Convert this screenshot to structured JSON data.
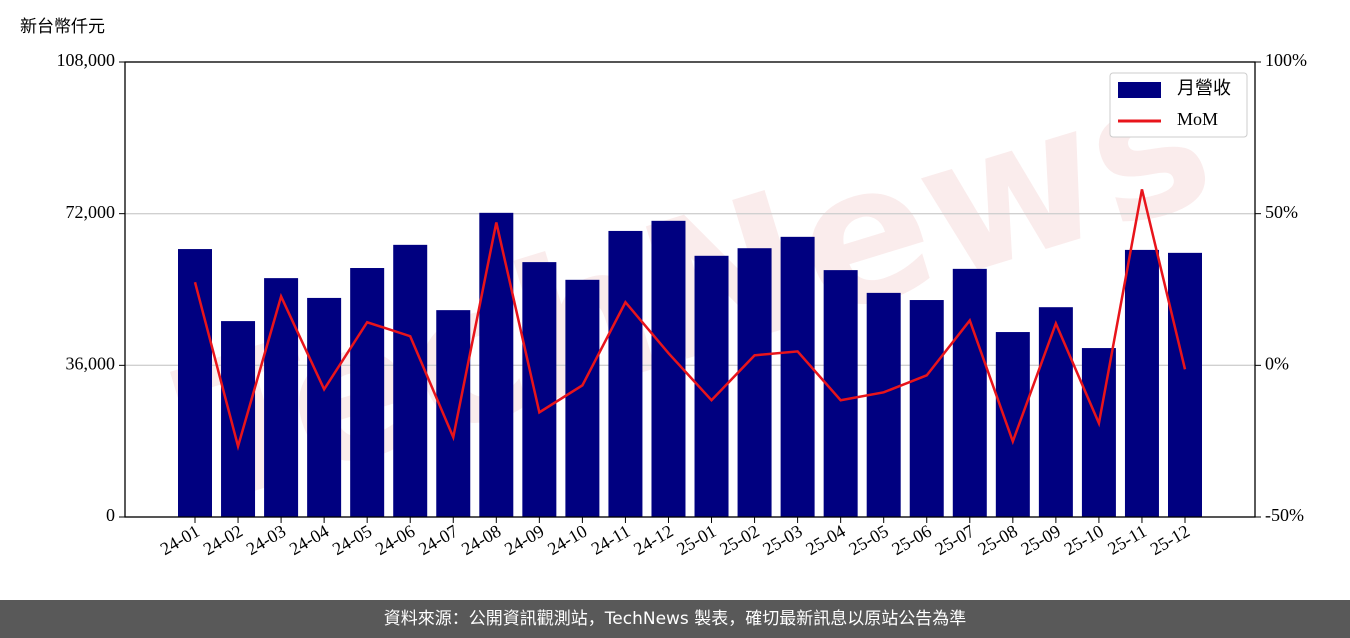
{
  "chart_data": {
    "type": "bar_line",
    "y_axis_label": "新台幣仟元",
    "watermark": "TechNews",
    "footer": "資料來源：公開資訊觀測站，TechNews 製表，確切最新訊息以原站公告為準",
    "categories": [
      "24-01",
      "24-02",
      "24-03",
      "24-04",
      "24-05",
      "24-06",
      "24-07",
      "24-08",
      "24-09",
      "24-10",
      "24-11",
      "24-12",
      "25-01",
      "25-02",
      "25-03",
      "25-04",
      "25-05",
      "25-06",
      "25-07",
      "25-08",
      "25-09",
      "25-10",
      "25-11",
      "25-12"
    ],
    "series": [
      {
        "name": "月營收",
        "type": "bar",
        "color": "#000080",
        "values": [
          63600,
          46500,
          56700,
          52000,
          59100,
          64600,
          49100,
          72200,
          60500,
          56300,
          67900,
          70300,
          62000,
          63800,
          66500,
          58600,
          53200,
          51500,
          58900,
          43900,
          49800,
          40100,
          63400,
          62700
        ]
      },
      {
        "name": "MoM",
        "type": "line",
        "axis": "y2",
        "color": "#e8141b",
        "values": [
          27.4,
          -26.7,
          22.7,
          -7.9,
          14.2,
          9.6,
          -23.7,
          47.1,
          -15.5,
          -6.6,
          20.8,
          4.0,
          -11.5,
          3.3,
          4.6,
          -11.5,
          -8.9,
          -3.3,
          14.8,
          -25.1,
          13.8,
          -19.1,
          58.0,
          -1.3
        ]
      }
    ],
    "ylim": [
      0,
      108000
    ],
    "yticks": [
      0,
      {
        "value": 36000,
        "label": "36,000"
      },
      {
        "value": 72000,
        "label": "72,000"
      },
      {
        "value": 108000,
        "label": "108,000"
      }
    ],
    "y2lim": [
      -50,
      100
    ],
    "y2ticks": [
      {
        "value": -50,
        "label": "-50%"
      },
      {
        "value": 0,
        "label": "0%"
      },
      {
        "value": 50,
        "label": "50%"
      },
      {
        "value": 100,
        "label": "100%"
      }
    ],
    "grid": true,
    "legend": "upper right"
  }
}
